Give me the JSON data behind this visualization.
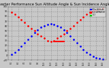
{
  "title": "Solar PV/Inverter Performance Sun Altitude Angle & Sun Incidence Angle on PV Panels",
  "title_fontsize": 3.8,
  "bg_color": "#c8c8c8",
  "plot_bg_color": "#c8c8c8",
  "grid_color": "#888888",
  "legend_labels": [
    "HOur ALtitude",
    "SUN APPARENT",
    "TILT"
  ],
  "legend_colors": [
    "#0000ff",
    "#ff0000",
    "#00cc00"
  ],
  "x_times": [
    5.0,
    5.5,
    6.0,
    6.5,
    7.0,
    7.5,
    8.0,
    8.5,
    9.0,
    9.5,
    10.0,
    10.5,
    11.0,
    11.5,
    12.0,
    12.5,
    13.0,
    13.5,
    14.0,
    14.5,
    15.0,
    15.5,
    16.0,
    16.5,
    17.0,
    17.5,
    18.0,
    18.5,
    19.0
  ],
  "altitude_angles": [
    2,
    6,
    12,
    18,
    25,
    32,
    39,
    46,
    52,
    57,
    61,
    63,
    64,
    63,
    61,
    57,
    52,
    46,
    39,
    32,
    25,
    18,
    12,
    6,
    2,
    -2,
    -5,
    -7,
    -8
  ],
  "incidence_angles": [
    88,
    84,
    79,
    73,
    67,
    61,
    55,
    50,
    44,
    39,
    35,
    30,
    28,
    30,
    35,
    39,
    44,
    50,
    55,
    61,
    67,
    73,
    79,
    84,
    88,
    91,
    93,
    95,
    96
  ],
  "altitude_color": "#0000ff",
  "incidence_color": "#ff0000",
  "ymin": -10,
  "ymax": 100,
  "xmin": 4.5,
  "xmax": 19.5,
  "yticks": [
    -10,
    0,
    10,
    20,
    30,
    40,
    50,
    60,
    70,
    80,
    90,
    100
  ],
  "xtick_labels": [
    "5:0",
    "6:0",
    "7:0",
    "8:0",
    "9:0",
    "10:0",
    "11:0",
    "12:0",
    "13:0",
    "14:0",
    "15:0",
    "16:0",
    "17:0",
    "18:0",
    "19:0"
  ],
  "xtick_values": [
    5,
    6,
    7,
    8,
    9,
    10,
    11,
    12,
    13,
    14,
    15,
    16,
    17,
    18,
    19
  ],
  "marker_size": 2.0,
  "noon_line_x": [
    11.5,
    13.0
  ],
  "noon_line_y": [
    28,
    28
  ],
  "text_color": "#000000"
}
